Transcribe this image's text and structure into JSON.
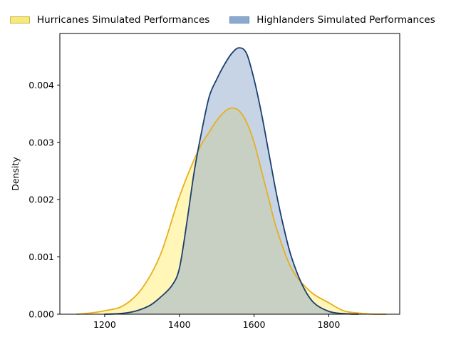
{
  "chart_data": {
    "type": "area",
    "title": "",
    "xlabel": "",
    "ylabel": "Density",
    "xlim": [
      1080,
      1990
    ],
    "ylim": [
      0,
      0.0049
    ],
    "x_ticks": [
      1200,
      1400,
      1600,
      1800
    ],
    "x_tick_labels": [
      "1200",
      "1400",
      "1600",
      "1800"
    ],
    "y_ticks": [
      0,
      0.001,
      0.002,
      0.003,
      0.004
    ],
    "y_tick_labels": [
      "0.000",
      "0.001",
      "0.002",
      "0.003",
      "0.004"
    ],
    "grid": false,
    "legend_position": "top (above plot)",
    "series": [
      {
        "name": "Hurricanes Simulated Performances",
        "fill": "#fff3a0",
        "legend_fill": "#f7e87a",
        "line": "#e6b01e",
        "fill_opacity": 0.75,
        "x": [
          1125,
          1160,
          1200,
          1250,
          1300,
          1350,
          1400,
          1450,
          1480,
          1500,
          1520,
          1540,
          1560,
          1580,
          1600,
          1620,
          1640,
          1660,
          1700,
          1750,
          1800,
          1840,
          1880,
          1920,
          1955
        ],
        "values": [
          0.0,
          2e-05,
          6e-05,
          0.00015,
          0.00045,
          0.00105,
          0.00205,
          0.00285,
          0.00318,
          0.00338,
          0.00353,
          0.0036,
          0.00355,
          0.00335,
          0.003,
          0.0025,
          0.002,
          0.0015,
          0.0008,
          0.0004,
          0.0002,
          6e-05,
          2e-05,
          0.0,
          0.0
        ]
      },
      {
        "name": "Highlanders Simulated Performances",
        "fill": "#8fa9ce",
        "legend_fill": "#8aa9ce",
        "line": "#1a3f6e",
        "fill_opacity": 0.5,
        "x": [
          1200,
          1240,
          1280,
          1320,
          1350,
          1380,
          1400,
          1420,
          1440,
          1460,
          1480,
          1500,
          1520,
          1540,
          1560,
          1580,
          1600,
          1620,
          1640,
          1660,
          1680,
          1700,
          1730,
          1760,
          1800,
          1840,
          1880
        ],
        "values": [
          0.0,
          1e-05,
          5e-05,
          0.00015,
          0.0003,
          0.0005,
          0.0008,
          0.0016,
          0.0025,
          0.0032,
          0.0038,
          0.0041,
          0.00435,
          0.00455,
          0.00465,
          0.00455,
          0.0041,
          0.0035,
          0.0028,
          0.0021,
          0.0015,
          0.001,
          0.0005,
          0.0002,
          5e-05,
          1e-05,
          0.0
        ]
      }
    ]
  }
}
